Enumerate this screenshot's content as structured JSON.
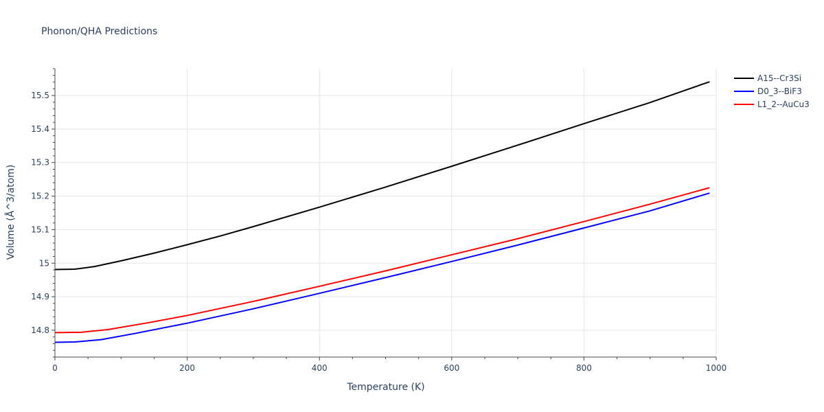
{
  "chart_data": {
    "type": "line",
    "title": "Phonon/QHA Predictions",
    "xlabel": "Temperature (K)",
    "ylabel": "Volume (Å^3/atom)",
    "xlim": [
      0,
      1000
    ],
    "ylim": [
      14.72,
      15.58
    ],
    "x_ticks": [
      0,
      200,
      400,
      600,
      800,
      1000
    ],
    "x_tick_labels": [
      "0",
      "200",
      "400",
      "600",
      "800",
      "1000"
    ],
    "y_ticks": [
      14.8,
      14.9,
      15.0,
      15.1,
      15.2,
      15.3,
      15.4,
      15.5
    ],
    "y_tick_labels": [
      "14.8",
      "14.9",
      "15",
      "15.1",
      "15.2",
      "15.3",
      "15.4",
      "15.5"
    ],
    "grid": true,
    "legend_position": "top-right",
    "series": [
      {
        "name": "A15--Cr3Si",
        "color": "#000000",
        "x": [
          0,
          30,
          60,
          100,
          150,
          200,
          250,
          300,
          400,
          500,
          600,
          700,
          800,
          900,
          990
        ],
        "y": [
          14.981,
          14.982,
          14.99,
          15.007,
          15.03,
          15.055,
          15.081,
          15.109,
          15.167,
          15.227,
          15.289,
          15.352,
          15.416,
          15.479,
          15.541
        ]
      },
      {
        "name": "D0_3--BiF3",
        "color": "#0000ff",
        "x": [
          0,
          30,
          70,
          120,
          200,
          300,
          400,
          500,
          600,
          700,
          800,
          900,
          990
        ],
        "y": [
          14.764,
          14.765,
          14.772,
          14.79,
          14.821,
          14.864,
          14.91,
          14.957,
          15.005,
          15.054,
          15.105,
          15.156,
          15.209
        ]
      },
      {
        "name": "L1_2--AuCu3",
        "color": "#ff0000",
        "x": [
          0,
          40,
          80,
          140,
          200,
          300,
          400,
          500,
          600,
          700,
          800,
          900,
          990
        ],
        "y": [
          14.793,
          14.794,
          14.802,
          14.822,
          14.844,
          14.886,
          14.931,
          14.977,
          15.025,
          15.073,
          15.124,
          15.176,
          15.225
        ]
      }
    ]
  }
}
